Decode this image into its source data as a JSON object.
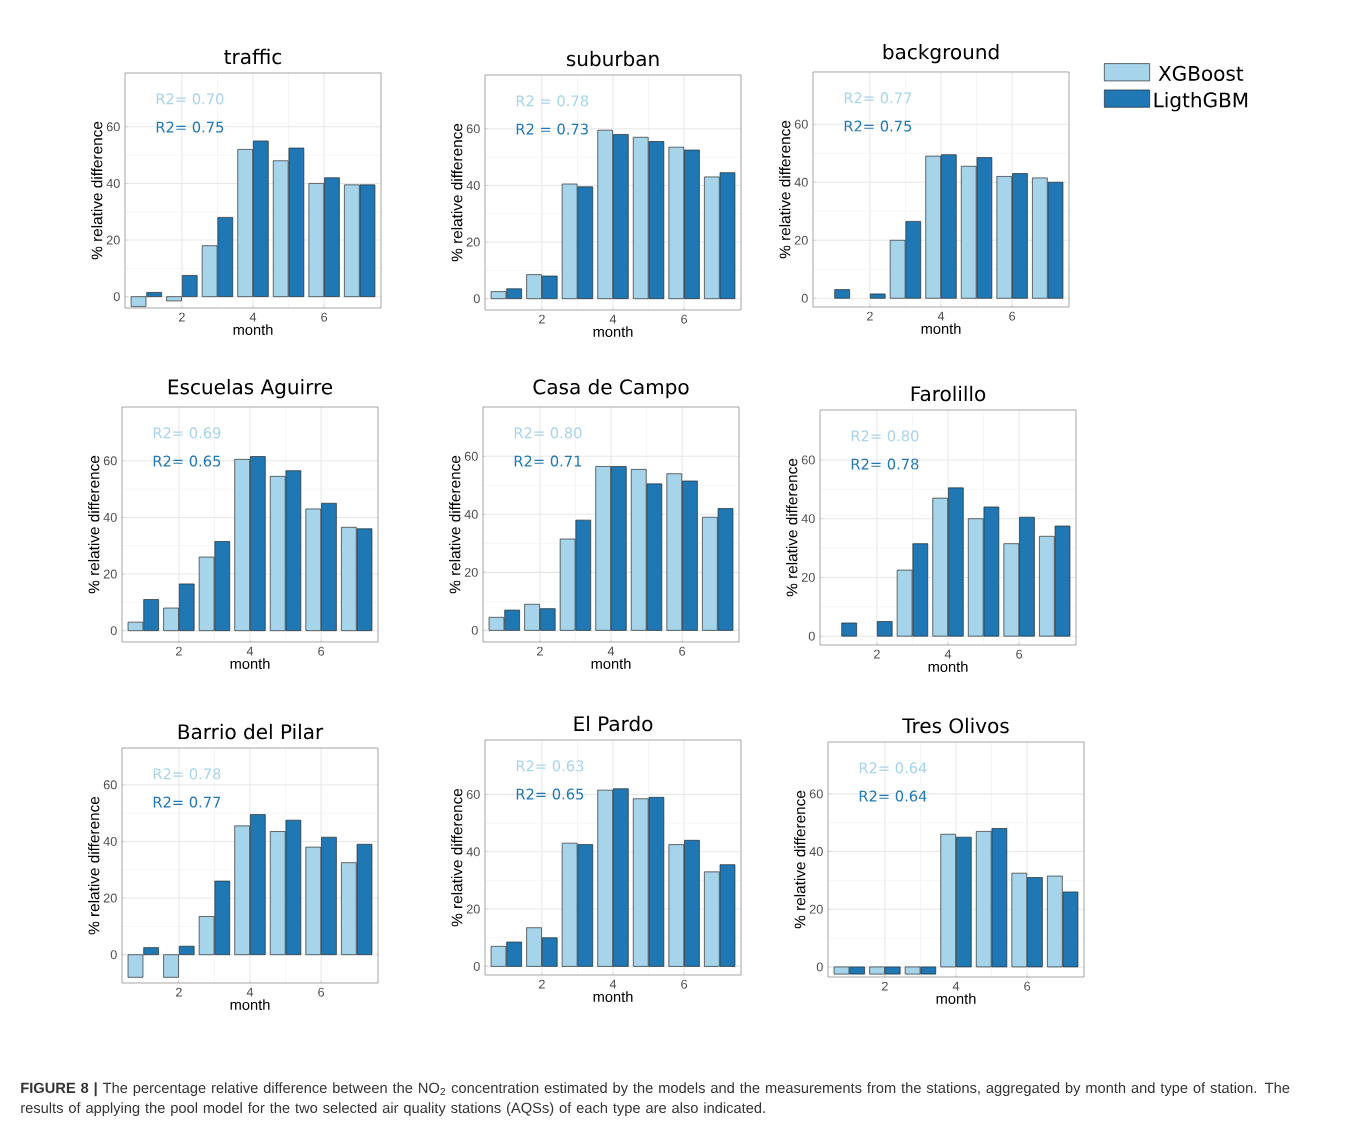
{
  "chart_data": [
    {
      "type": "bar",
      "title": "traffic",
      "xlabel": "month",
      "ylabel": "% relative difference",
      "x": [
        1,
        2,
        3,
        4,
        5,
        6,
        7
      ],
      "xlim": [
        0.4,
        7.6
      ],
      "xticks": [
        2,
        4,
        6
      ],
      "ylim": [
        -4,
        79
      ],
      "yticks": [
        0,
        20,
        40,
        60
      ],
      "grid": true,
      "annotations": [
        "R2= 0.70",
        "R2= 0.75"
      ],
      "series": [
        {
          "color": "#a6d4ea",
          "values": [
            -3.5,
            -1.5,
            18,
            52,
            48,
            40,
            39.5
          ]
        },
        {
          "color": "#1f78b4",
          "values": [
            1.5,
            7.5,
            28,
            55,
            52.5,
            42,
            39.5
          ]
        }
      ]
    },
    {
      "type": "bar",
      "title": "suburban",
      "xlabel": "month",
      "ylabel": "% relative difference",
      "x": [
        1,
        2,
        3,
        4,
        5,
        6,
        7
      ],
      "xlim": [
        0.4,
        7.6
      ],
      "xticks": [
        2,
        4,
        6
      ],
      "ylim": [
        -4,
        79
      ],
      "yticks": [
        0,
        20,
        40,
        60
      ],
      "grid": true,
      "annotations": [
        "R2 = 0.78",
        "R2 = 0.73"
      ],
      "series": [
        {
          "color": "#a6d4ea",
          "values": [
            2.5,
            8.5,
            40.5,
            59.5,
            57,
            53.5,
            43
          ]
        },
        {
          "color": "#1f78b4",
          "values": [
            3.5,
            8,
            39.5,
            58,
            55.5,
            52.5,
            44.5
          ]
        }
      ]
    },
    {
      "type": "bar",
      "title": "background",
      "xlabel": "month",
      "ylabel": "% relative difference",
      "x": [
        1,
        2,
        3,
        4,
        5,
        6,
        7
      ],
      "xlim": [
        0.4,
        7.6
      ],
      "xticks": [
        2,
        4,
        6
      ],
      "ylim": [
        -3,
        78
      ],
      "yticks": [
        0,
        20,
        40,
        60
      ],
      "grid": true,
      "legend": "right",
      "annotations": [
        "R2= 0.77",
        "R2= 0.75"
      ],
      "series": [
        {
          "name": "XGBoost",
          "color": "#a6d4ea",
          "values": [
            null,
            null,
            20,
            49,
            45.5,
            42,
            41.5
          ]
        },
        {
          "name": "LigthGBM",
          "color": "#1f78b4",
          "values": [
            3,
            1.5,
            26.5,
            49.5,
            48.5,
            43,
            40
          ]
        }
      ]
    },
    {
      "type": "bar",
      "title": "Escuelas Aguirre",
      "xlabel": "month",
      "ylabel": "% relative difference",
      "x": [
        1,
        2,
        3,
        4,
        5,
        6,
        7
      ],
      "xlim": [
        0.4,
        7.6
      ],
      "xticks": [
        2,
        4,
        6
      ],
      "ylim": [
        -4,
        79
      ],
      "yticks": [
        0,
        20,
        40,
        60
      ],
      "grid": true,
      "annotations": [
        "R2= 0.69",
        "R2= 0.65"
      ],
      "series": [
        {
          "color": "#a6d4ea",
          "values": [
            3,
            8,
            26,
            60.5,
            54.5,
            43,
            36.5
          ]
        },
        {
          "color": "#1f78b4",
          "values": [
            11,
            16.5,
            31.5,
            61.5,
            56.5,
            45,
            36
          ]
        }
      ]
    },
    {
      "type": "bar",
      "title": "Casa de Campo",
      "xlabel": "month",
      "ylabel": "% relative difference",
      "x": [
        1,
        2,
        3,
        4,
        5,
        6,
        7
      ],
      "xlim": [
        0.4,
        7.6
      ],
      "xticks": [
        2,
        4,
        6
      ],
      "ylim": [
        -4,
        77
      ],
      "yticks": [
        0,
        20,
        40,
        60
      ],
      "grid": true,
      "annotations": [
        "R2= 0.80",
        "R2= 0.71"
      ],
      "series": [
        {
          "color": "#a6d4ea",
          "values": [
            4.5,
            9,
            31.5,
            56.5,
            55.5,
            54,
            39
          ]
        },
        {
          "color": "#1f78b4",
          "values": [
            7,
            7.5,
            38,
            56.5,
            50.5,
            51.5,
            42
          ]
        }
      ]
    },
    {
      "type": "bar",
      "title": "Farolillo",
      "xlabel": "month",
      "ylabel": "% relative difference",
      "x": [
        1,
        2,
        3,
        4,
        5,
        6,
        7
      ],
      "xlim": [
        0.4,
        7.6
      ],
      "xticks": [
        2,
        4,
        6
      ],
      "ylim": [
        -3,
        77
      ],
      "yticks": [
        0,
        20,
        40,
        60
      ],
      "grid": true,
      "annotations": [
        "R2= 0.80",
        "R2= 0.78"
      ],
      "series": [
        {
          "color": "#a6d4ea",
          "values": [
            null,
            null,
            22.5,
            47,
            40,
            31.5,
            34
          ]
        },
        {
          "color": "#1f78b4",
          "values": [
            4.5,
            5,
            31.5,
            50.5,
            44,
            40.5,
            37.5
          ]
        }
      ]
    },
    {
      "type": "bar",
      "title": "Barrio del Pilar",
      "xlabel": "month",
      "ylabel": "% relative difference",
      "x": [
        1,
        2,
        3,
        4,
        5,
        6,
        7
      ],
      "xlim": [
        0.4,
        7.6
      ],
      "xticks": [
        2,
        4,
        6
      ],
      "ylim": [
        -10,
        73
      ],
      "yticks": [
        0,
        20,
        40,
        60
      ],
      "grid": true,
      "annotations": [
        "R2= 0.78",
        "R2= 0.77"
      ],
      "series": [
        {
          "color": "#a6d4ea",
          "values": [
            -8,
            -8,
            13.5,
            45.5,
            43.5,
            38,
            32.5
          ]
        },
        {
          "color": "#1f78b4",
          "values": [
            2.5,
            3,
            26,
            49.5,
            47.5,
            41.5,
            39
          ]
        }
      ]
    },
    {
      "type": "bar",
      "title": "El Pardo",
      "xlabel": "month",
      "ylabel": "% relative difference",
      "x": [
        1,
        2,
        3,
        4,
        5,
        6,
        7
      ],
      "xlim": [
        0.4,
        7.6
      ],
      "xticks": [
        2,
        4,
        6
      ],
      "ylim": [
        -3,
        79
      ],
      "yticks": [
        0,
        20,
        40,
        60
      ],
      "grid": true,
      "annotations": [
        "R2= 0.63",
        "R2= 0.65"
      ],
      "series": [
        {
          "color": "#a6d4ea",
          "values": [
            7,
            13.5,
            43,
            61.5,
            58.5,
            42.5,
            33
          ]
        },
        {
          "color": "#1f78b4",
          "values": [
            8.5,
            10,
            42.5,
            62,
            59,
            44,
            35.5
          ]
        }
      ]
    },
    {
      "type": "bar",
      "title": "Tres Olivos",
      "xlabel": "month",
      "ylabel": "% relative difference",
      "x": [
        1,
        2,
        3,
        4,
        5,
        6,
        7
      ],
      "xlim": [
        0.4,
        7.6
      ],
      "xticks": [
        2,
        4,
        6
      ],
      "ylim": [
        -3.5,
        78
      ],
      "yticks": [
        0,
        20,
        40,
        60
      ],
      "grid": true,
      "annotations": [
        "R2= 0.64",
        "R2= 0.64",
        "**FIGURE 8 |** The percentage relative difference between the NO$_{2}$ concentration estimated by the models and the measurements from the stations, aggregated by month and type of station. The results of applying the pool model for the two selected air quality stations (AQSs) of each type are also indicated."
      ],
      "series": [
        {
          "color": "#a6d4ea",
          "values": [
            -2.5,
            -2.5,
            -2.5,
            46,
            47,
            32.5,
            31.5
          ]
        },
        {
          "color": "#1f78b4",
          "values": [
            -2.5,
            -2.5,
            -2.5,
            45,
            48,
            31,
            26
          ]
        }
      ]
    }
  ]
}
